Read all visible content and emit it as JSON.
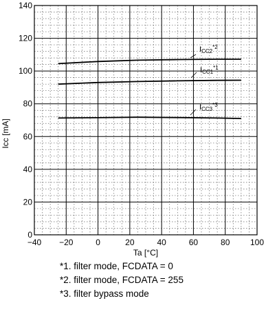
{
  "chart_data": {
    "type": "line",
    "xlabel": "Ta [°C]",
    "ylabel": "Icc [mA]",
    "xlim": [
      -40,
      100
    ],
    "ylim": [
      0,
      140
    ],
    "x_ticks": [
      -40,
      -20,
      0,
      20,
      40,
      60,
      80,
      100
    ],
    "y_ticks": [
      0,
      20,
      40,
      60,
      80,
      100,
      120,
      140
    ],
    "x_tick_labels": [
      "−40",
      "−20",
      "0",
      "20",
      "40",
      "60",
      "80",
      "100"
    ],
    "y_tick_labels": [
      "0",
      "20",
      "40",
      "60",
      "80",
      "100",
      "120",
      "140"
    ],
    "grid": true,
    "series": [
      {
        "name": "Icc2*2",
        "x": [
          -25,
          0,
          25,
          50,
          75,
          90
        ],
        "y": [
          104.5,
          105.8,
          106.6,
          107.0,
          107.2,
          107.2
        ]
      },
      {
        "name": "Icc1*1",
        "x": [
          -25,
          0,
          25,
          50,
          75,
          90
        ],
        "y": [
          92.0,
          93.0,
          93.6,
          94.0,
          94.3,
          94.4
        ]
      },
      {
        "name": "Icc3*3",
        "x": [
          -25,
          0,
          25,
          50,
          75,
          90
        ],
        "y": [
          71.3,
          71.5,
          71.8,
          71.6,
          71.3,
          71.0
        ]
      }
    ]
  },
  "annotations": [
    {
      "base": "I",
      "sub": "CC2",
      "sup": "*2"
    },
    {
      "base": "I",
      "sub": "CC1",
      "sup": "*1"
    },
    {
      "base": "I",
      "sub": "CC3",
      "sup": "*3"
    }
  ],
  "notes": [
    "*1.  filter mode, FCDATA = 0",
    "*2.  filter mode, FCDATA = 255",
    "*3.  filter bypass mode"
  ]
}
